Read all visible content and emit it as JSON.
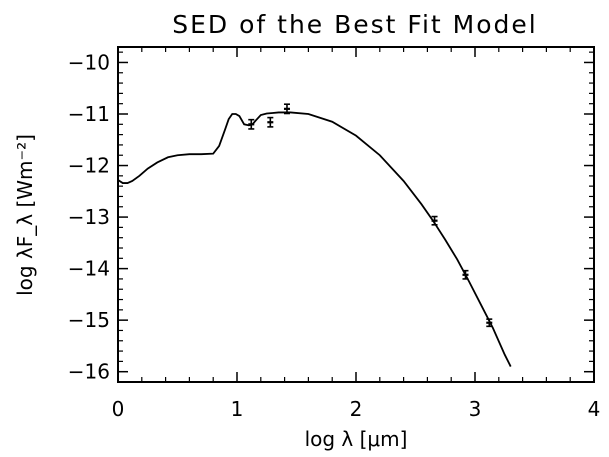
{
  "chart_data": {
    "type": "line",
    "title": "SED of the Best Fit Model",
    "xlabel": "log λ [μm]",
    "ylabel": "log λF_λ [Wm⁻²]",
    "xlim": [
      0,
      4
    ],
    "ylim": [
      -16.2,
      -9.7
    ],
    "xticks": [
      0,
      1,
      2,
      3,
      4
    ],
    "xtick_labels": [
      "0",
      "1",
      "2",
      "3",
      "4"
    ],
    "yticks": [
      -16,
      -15,
      -14,
      -13,
      -12,
      -11,
      -10
    ],
    "ytick_labels": [
      "−16",
      "−15",
      "−14",
      "−13",
      "−12",
      "−11",
      "−10"
    ],
    "grid": false,
    "series": [
      {
        "kind": "model-curve",
        "x": [
          0.0,
          0.04,
          0.08,
          0.12,
          0.18,
          0.25,
          0.33,
          0.42,
          0.5,
          0.6,
          0.7,
          0.8,
          0.85,
          0.9,
          0.93,
          0.96,
          0.99,
          1.02,
          1.06,
          1.1,
          1.13,
          1.16,
          1.2,
          1.25,
          1.3,
          1.35,
          1.45,
          1.6,
          1.8,
          2.0,
          2.2,
          2.4,
          2.55,
          2.65,
          2.75,
          2.85,
          2.95,
          3.05,
          3.15,
          3.25,
          3.3
        ],
        "y": [
          -12.28,
          -12.34,
          -12.34,
          -12.3,
          -12.2,
          -12.06,
          -11.94,
          -11.84,
          -11.8,
          -11.78,
          -11.78,
          -11.77,
          -11.62,
          -11.3,
          -11.1,
          -11.0,
          -11.0,
          -11.04,
          -11.2,
          -11.22,
          -11.2,
          -11.12,
          -11.02,
          -10.99,
          -10.98,
          -10.97,
          -10.97,
          -11.0,
          -11.15,
          -11.42,
          -11.8,
          -12.3,
          -12.75,
          -13.08,
          -13.44,
          -13.82,
          -14.25,
          -14.7,
          -15.15,
          -15.67,
          -15.9
        ]
      },
      {
        "kind": "observations",
        "x": [
          1.12,
          1.28,
          1.42,
          2.66,
          2.92,
          3.12
        ],
        "y": [
          -11.2,
          -11.16,
          -10.9,
          -13.07,
          -14.12,
          -15.05
        ],
        "yerr": [
          0.09,
          0.09,
          0.09,
          0.08,
          0.08,
          0.07
        ]
      }
    ]
  }
}
